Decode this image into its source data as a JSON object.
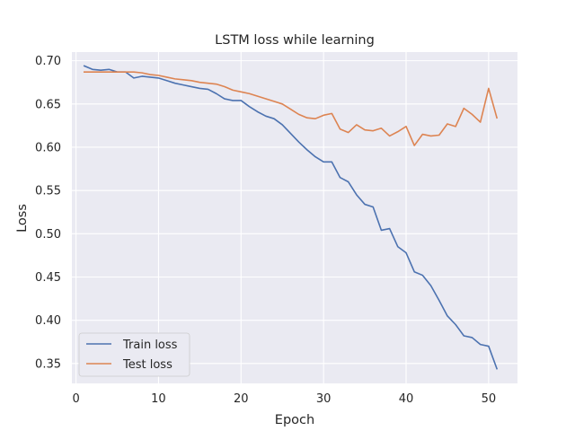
{
  "chart_data": {
    "type": "line",
    "title": "LSTM loss while learning",
    "xlabel": "Epoch",
    "ylabel": "Loss",
    "xlim": [
      -0.5,
      53.5
    ],
    "ylim": [
      0.327,
      0.71
    ],
    "xticks": [
      0,
      10,
      20,
      30,
      40,
      50
    ],
    "yticks": [
      0.35,
      0.4,
      0.45,
      0.5,
      0.55,
      0.6,
      0.65,
      0.7
    ],
    "xtick_labels": [
      "0",
      "10",
      "20",
      "30",
      "40",
      "50"
    ],
    "ytick_labels": [
      "0.35",
      "0.40",
      "0.45",
      "0.50",
      "0.55",
      "0.60",
      "0.65",
      "0.70"
    ],
    "grid": true,
    "legend_position": "lower-left",
    "x": [
      1,
      2,
      3,
      4,
      5,
      6,
      7,
      8,
      9,
      10,
      11,
      12,
      13,
      14,
      15,
      16,
      17,
      18,
      19,
      20,
      21,
      22,
      23,
      24,
      25,
      26,
      27,
      28,
      29,
      30,
      31,
      32,
      33,
      34,
      35,
      36,
      37,
      38,
      39,
      40,
      41,
      42,
      43,
      44,
      45,
      46,
      47,
      48,
      49,
      50,
      51
    ],
    "series": [
      {
        "name": "Train loss",
        "color": "#4c72b0",
        "values": [
          0.694,
          0.69,
          0.689,
          0.69,
          0.687,
          0.687,
          0.68,
          0.682,
          0.681,
          0.68,
          0.677,
          0.674,
          0.672,
          0.67,
          0.668,
          0.667,
          0.662,
          0.656,
          0.654,
          0.654,
          0.647,
          0.641,
          0.636,
          0.633,
          0.626,
          0.616,
          0.606,
          0.597,
          0.589,
          0.583,
          0.583,
          0.565,
          0.56,
          0.545,
          0.534,
          0.531,
          0.504,
          0.506,
          0.485,
          0.478,
          0.456,
          0.452,
          0.44,
          0.423,
          0.405,
          0.395,
          0.382,
          0.38,
          0.372,
          0.37,
          0.344
        ]
      },
      {
        "name": "Test loss",
        "color": "#dd8452",
        "values": [
          0.687,
          0.687,
          0.687,
          0.687,
          0.687,
          0.687,
          0.687,
          0.686,
          0.684,
          0.683,
          0.681,
          0.679,
          0.678,
          0.677,
          0.675,
          0.674,
          0.673,
          0.67,
          0.666,
          0.664,
          0.662,
          0.659,
          0.656,
          0.653,
          0.65,
          0.644,
          0.638,
          0.634,
          0.633,
          0.637,
          0.639,
          0.621,
          0.617,
          0.626,
          0.62,
          0.619,
          0.622,
          0.613,
          0.618,
          0.624,
          0.602,
          0.615,
          0.613,
          0.614,
          0.627,
          0.624,
          0.645,
          0.638,
          0.629,
          0.668,
          0.634
        ]
      }
    ]
  }
}
